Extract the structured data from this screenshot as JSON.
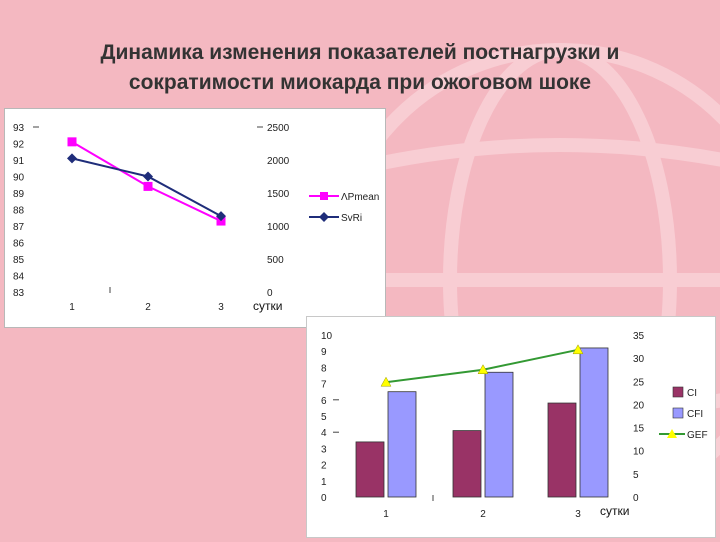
{
  "slide": {
    "title_line1": "Динамика изменения показателей постнагрузки и",
    "title_line2": "сократимости миокарда при ожоговом шоке",
    "background_color": "#f4b8c1"
  },
  "chart_data": [
    {
      "type": "line",
      "x": [
        1,
        2,
        3
      ],
      "xlabel": "сутки",
      "y_left": {
        "range": [
          83,
          93
        ],
        "ticks": [
          93,
          92,
          91,
          90,
          89,
          88,
          87,
          86,
          85,
          84,
          83
        ]
      },
      "y_right": {
        "range": [
          0,
          2500
        ],
        "ticks": [
          2500,
          2000,
          1500,
          1000,
          500,
          0
        ]
      },
      "legend_position": "right",
      "series": [
        {
          "name": "ΛPmean",
          "axis": "left",
          "values": [
            92.1,
            89.4,
            87.3
          ],
          "color": "#ff00ff",
          "marker": "square"
        },
        {
          "name": "SvRi",
          "axis": "left",
          "values": [
            91.1,
            90.0,
            87.6
          ],
          "color": "#1f2d7a",
          "marker": "diamond"
        }
      ]
    },
    {
      "type": "bar",
      "categories": [
        "1",
        "2",
        "3"
      ],
      "xlabel": "сутки",
      "y_left": {
        "range": [
          0,
          10
        ],
        "ticks": [
          10,
          9,
          8,
          7,
          6,
          5,
          4,
          3,
          2,
          1,
          0
        ]
      },
      "y_right": {
        "range": [
          0,
          35
        ],
        "ticks": [
          35,
          30,
          25,
          20,
          15,
          10,
          5,
          0
        ]
      },
      "legend_position": "right",
      "series": [
        {
          "name": "CI",
          "type": "bar",
          "axis": "left",
          "values": [
            3.4,
            4.1,
            5.8
          ],
          "color": "#993366"
        },
        {
          "name": "CFI",
          "type": "bar",
          "axis": "left",
          "values": [
            6.5,
            7.7,
            9.2
          ],
          "color": "#9999ff"
        },
        {
          "name": "GEF",
          "type": "line",
          "axis": "right",
          "values": [
            24.8,
            27.5,
            31.8
          ],
          "color": "#339933",
          "marker_color": "#ffff00"
        }
      ]
    }
  ]
}
